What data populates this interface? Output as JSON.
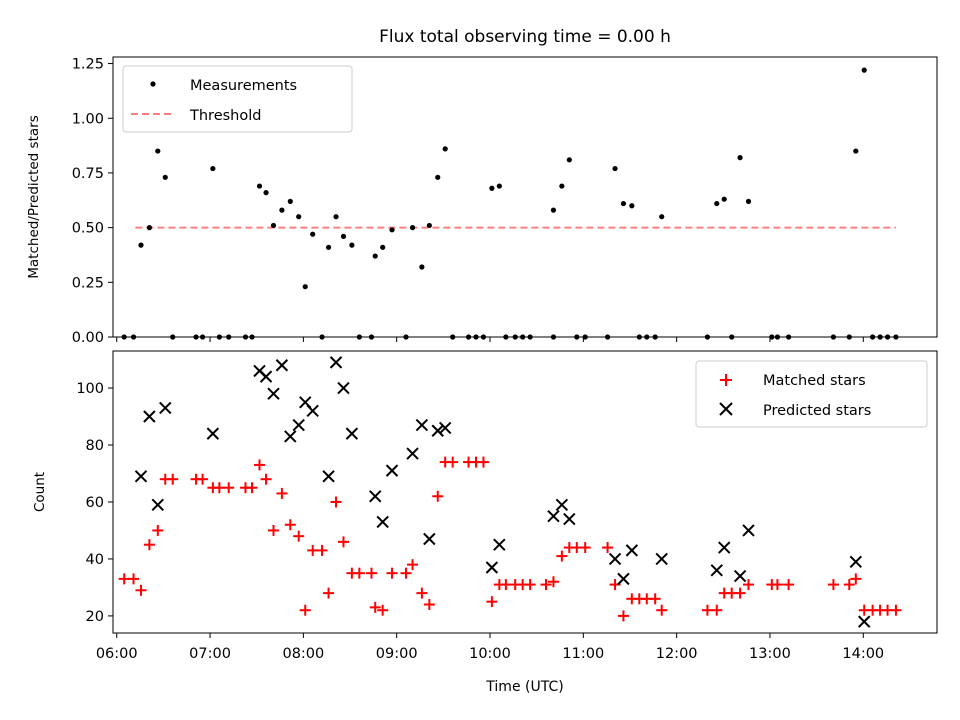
{
  "chart_data": [
    {
      "type": "scatter",
      "title": "Flux total observing time = 0.00 h",
      "ylabel": "Matched/Predicted stars",
      "xlabel": "",
      "xlim": [
        5.96,
        14.79
      ],
      "ylim": [
        0,
        1.28
      ],
      "yticks": [
        0.0,
        0.25,
        0.5,
        0.75,
        1.0,
        1.25
      ],
      "ytick_labels": [
        "0.00",
        "0.25",
        "0.50",
        "0.75",
        "1.00",
        "1.25"
      ],
      "legend_position": "top-left",
      "threshold": {
        "name": "Threshold",
        "y": 0.5,
        "x": [
          6.2,
          14.35
        ],
        "color": "#ff7f7f"
      },
      "series": [
        {
          "name": "Measurements",
          "color": "#000000",
          "points": [
            [
              6.08,
              0
            ],
            [
              6.18,
              0
            ],
            [
              6.26,
              0.42
            ],
            [
              6.35,
              0.5
            ],
            [
              6.44,
              0.85
            ],
            [
              6.52,
              0.73
            ],
            [
              6.6,
              0
            ],
            [
              6.85,
              0
            ],
            [
              6.92,
              0
            ],
            [
              7.03,
              0.77
            ],
            [
              7.1,
              0
            ],
            [
              7.2,
              0
            ],
            [
              7.38,
              0
            ],
            [
              7.45,
              0
            ],
            [
              7.53,
              0.69
            ],
            [
              7.6,
              0.66
            ],
            [
              7.68,
              0.51
            ],
            [
              7.77,
              0.58
            ],
            [
              7.86,
              0.62
            ],
            [
              7.95,
              0.55
            ],
            [
              8.02,
              0.23
            ],
            [
              8.1,
              0.47
            ],
            [
              8.2,
              0
            ],
            [
              8.27,
              0.41
            ],
            [
              8.35,
              0.55
            ],
            [
              8.43,
              0.46
            ],
            [
              8.52,
              0.42
            ],
            [
              8.6,
              0
            ],
            [
              8.73,
              0
            ],
            [
              8.77,
              0.37
            ],
            [
              8.85,
              0.41
            ],
            [
              8.95,
              0.49
            ],
            [
              9.1,
              0
            ],
            [
              9.17,
              0.5
            ],
            [
              9.27,
              0.32
            ],
            [
              9.35,
              0.51
            ],
            [
              9.44,
              0.73
            ],
            [
              9.52,
              0.86
            ],
            [
              9.6,
              0
            ],
            [
              9.77,
              0
            ],
            [
              9.85,
              0
            ],
            [
              9.93,
              0
            ],
            [
              10.02,
              0.68
            ],
            [
              10.1,
              0.69
            ],
            [
              10.17,
              0
            ],
            [
              10.27,
              0
            ],
            [
              10.35,
              0
            ],
            [
              10.43,
              0
            ],
            [
              10.68,
              0
            ],
            [
              10.68,
              0.58
            ],
            [
              10.77,
              0.69
            ],
            [
              10.85,
              0.81
            ],
            [
              10.93,
              0
            ],
            [
              11.02,
              0
            ],
            [
              11.26,
              0
            ],
            [
              11.34,
              0.77
            ],
            [
              11.43,
              0.61
            ],
            [
              11.52,
              0.6
            ],
            [
              11.6,
              0
            ],
            [
              11.68,
              0
            ],
            [
              11.77,
              0
            ],
            [
              11.84,
              0.55
            ],
            [
              12.33,
              0
            ],
            [
              12.43,
              0.61
            ],
            [
              12.51,
              0.63
            ],
            [
              12.59,
              0
            ],
            [
              12.68,
              0.82
            ],
            [
              12.77,
              0.62
            ],
            [
              13.02,
              0
            ],
            [
              13.08,
              0
            ],
            [
              13.2,
              0
            ],
            [
              13.68,
              0
            ],
            [
              13.85,
              0
            ],
            [
              13.92,
              0.85
            ],
            [
              14.01,
              1.22
            ],
            [
              14.1,
              0
            ],
            [
              14.18,
              0
            ],
            [
              14.26,
              0
            ],
            [
              14.35,
              0
            ]
          ]
        }
      ]
    },
    {
      "type": "scatter",
      "title": "",
      "xlabel": "Time (UTC)",
      "ylabel": "Count",
      "xlim": [
        5.96,
        14.79
      ],
      "ylim": [
        14,
        113
      ],
      "yticks": [
        20,
        40,
        60,
        80,
        100
      ],
      "xticks": [
        6,
        7,
        8,
        9,
        10,
        11,
        12,
        13,
        14
      ],
      "xtick_labels": [
        "06:00",
        "07:00",
        "08:00",
        "09:00",
        "10:00",
        "11:00",
        "12:00",
        "13:00",
        "14:00"
      ],
      "legend_position": "top-right",
      "series": [
        {
          "name": "Matched stars",
          "marker": "+",
          "color": "#ff0000",
          "points": [
            [
              6.08,
              33
            ],
            [
              6.18,
              33
            ],
            [
              6.26,
              29
            ],
            [
              6.35,
              45
            ],
            [
              6.44,
              50
            ],
            [
              6.52,
              68
            ],
            [
              6.6,
              68
            ],
            [
              6.85,
              68
            ],
            [
              6.92,
              68
            ],
            [
              7.03,
              65
            ],
            [
              7.1,
              65
            ],
            [
              7.2,
              65
            ],
            [
              7.38,
              65
            ],
            [
              7.45,
              65
            ],
            [
              7.53,
              73
            ],
            [
              7.6,
              68
            ],
            [
              7.68,
              50
            ],
            [
              7.77,
              63
            ],
            [
              7.86,
              52
            ],
            [
              7.95,
              48
            ],
            [
              8.02,
              22
            ],
            [
              8.1,
              43
            ],
            [
              8.2,
              43
            ],
            [
              8.27,
              28
            ],
            [
              8.35,
              60
            ],
            [
              8.43,
              46
            ],
            [
              8.52,
              35
            ],
            [
              8.6,
              35
            ],
            [
              8.73,
              35
            ],
            [
              8.77,
              23
            ],
            [
              8.85,
              22
            ],
            [
              8.95,
              35
            ],
            [
              9.1,
              35
            ],
            [
              9.17,
              38
            ],
            [
              9.27,
              28
            ],
            [
              9.35,
              24
            ],
            [
              9.44,
              62
            ],
            [
              9.52,
              74
            ],
            [
              9.6,
              74
            ],
            [
              9.77,
              74
            ],
            [
              9.85,
              74
            ],
            [
              9.93,
              74
            ],
            [
              10.02,
              25
            ],
            [
              10.1,
              31
            ],
            [
              10.17,
              31
            ],
            [
              10.27,
              31
            ],
            [
              10.35,
              31
            ],
            [
              10.43,
              31
            ],
            [
              10.6,
              31
            ],
            [
              10.68,
              32
            ],
            [
              10.77,
              41
            ],
            [
              10.85,
              44
            ],
            [
              10.93,
              44
            ],
            [
              11.02,
              44
            ],
            [
              11.26,
              44
            ],
            [
              11.34,
              31
            ],
            [
              11.43,
              20
            ],
            [
              11.52,
              26
            ],
            [
              11.6,
              26
            ],
            [
              11.68,
              26
            ],
            [
              11.77,
              26
            ],
            [
              11.84,
              22
            ],
            [
              12.33,
              22
            ],
            [
              12.43,
              22
            ],
            [
              12.51,
              28
            ],
            [
              12.59,
              28
            ],
            [
              12.68,
              28
            ],
            [
              12.77,
              31
            ],
            [
              13.02,
              31
            ],
            [
              13.08,
              31
            ],
            [
              13.2,
              31
            ],
            [
              13.68,
              31
            ],
            [
              13.85,
              31
            ],
            [
              13.92,
              33
            ],
            [
              14.01,
              22
            ],
            [
              14.1,
              22
            ],
            [
              14.18,
              22
            ],
            [
              14.26,
              22
            ],
            [
              14.35,
              22
            ]
          ]
        },
        {
          "name": "Predicted stars",
          "marker": "x",
          "color": "#000000",
          "points": [
            [
              6.26,
              69
            ],
            [
              6.35,
              90
            ],
            [
              6.44,
              59
            ],
            [
              6.52,
              93
            ],
            [
              7.03,
              84
            ],
            [
              7.53,
              106
            ],
            [
              7.6,
              104
            ],
            [
              7.68,
              98
            ],
            [
              7.77,
              108
            ],
            [
              7.86,
              83
            ],
            [
              7.95,
              87
            ],
            [
              8.02,
              95
            ],
            [
              8.1,
              92
            ],
            [
              8.27,
              69
            ],
            [
              8.35,
              109
            ],
            [
              8.43,
              100
            ],
            [
              8.52,
              84
            ],
            [
              8.77,
              62
            ],
            [
              8.85,
              53
            ],
            [
              8.95,
              71
            ],
            [
              9.17,
              77
            ],
            [
              9.27,
              87
            ],
            [
              9.35,
              47
            ],
            [
              9.44,
              85
            ],
            [
              9.52,
              86
            ],
            [
              10.02,
              37
            ],
            [
              10.1,
              45
            ],
            [
              10.68,
              55
            ],
            [
              10.77,
              59
            ],
            [
              10.85,
              54
            ],
            [
              11.34,
              40
            ],
            [
              11.43,
              33
            ],
            [
              11.52,
              43
            ],
            [
              11.84,
              40
            ],
            [
              12.43,
              36
            ],
            [
              12.51,
              44
            ],
            [
              12.68,
              34
            ],
            [
              12.77,
              50
            ],
            [
              13.92,
              39
            ],
            [
              14.01,
              18
            ]
          ]
        }
      ]
    }
  ]
}
